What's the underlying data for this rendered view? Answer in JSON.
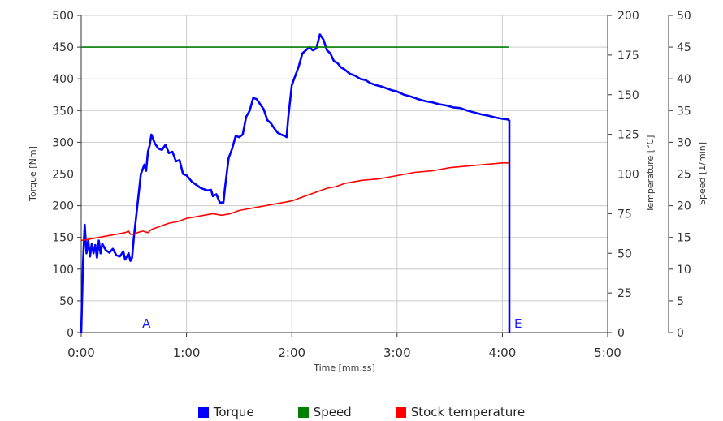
{
  "colors": {
    "torque": "#0000ff",
    "speed": "#007f00",
    "temperature": "#ff0000",
    "grid": "#cccccc",
    "marker": "#1a1aff"
  },
  "chart_data": {
    "type": "line",
    "title": "",
    "xlabel": "Time [mm:ss]",
    "xlim": [
      "0:00",
      "5:00"
    ],
    "x_ticks": [
      "0:00",
      "1:00",
      "2:00",
      "3:00",
      "4:00",
      "5:00"
    ],
    "grid": true,
    "legend_position": "bottom-center",
    "axes": {
      "torque": {
        "label": "Torque [Nm]",
        "range": [
          0,
          500
        ],
        "ticks": [
          0,
          50,
          100,
          150,
          200,
          250,
          300,
          350,
          400,
          450,
          500
        ],
        "side": "left"
      },
      "temperature": {
        "label": "Temperature [°C]",
        "range": [
          0,
          200
        ],
        "ticks": [
          0,
          25,
          50,
          75,
          100,
          125,
          150,
          175,
          200
        ],
        "side": "right"
      },
      "speed": {
        "label": "Speed [1/min]",
        "range": [
          0,
          50
        ],
        "ticks": [
          0,
          5,
          10,
          15,
          20,
          25,
          30,
          35,
          40,
          45,
          50
        ],
        "side": "right-outer"
      }
    },
    "series": [
      {
        "name": "Torque",
        "axis": "torque",
        "color": "#0000ff",
        "points": [
          [
            "0:00",
            0
          ],
          [
            "0:01",
            110
          ],
          [
            "0:02",
            170
          ],
          [
            "0:03",
            125
          ],
          [
            "0:04",
            145
          ],
          [
            "0:05",
            120
          ],
          [
            "0:06",
            140
          ],
          [
            "0:07",
            125
          ],
          [
            "0:08",
            138
          ],
          [
            "0:09",
            118
          ],
          [
            "0:10",
            145
          ],
          [
            "0:11",
            125
          ],
          [
            "0:12",
            140
          ],
          [
            "0:14",
            130
          ],
          [
            "0:16",
            126
          ],
          [
            "0:18",
            132
          ],
          [
            "0:20",
            122
          ],
          [
            "0:22",
            120
          ],
          [
            "0:24",
            128
          ],
          [
            "0:25",
            115
          ],
          [
            "0:27",
            125
          ],
          [
            "0:28",
            113
          ],
          [
            "0:29",
            118
          ],
          [
            "0:30",
            150
          ],
          [
            "0:32",
            200
          ],
          [
            "0:34",
            250
          ],
          [
            "0:36",
            265
          ],
          [
            "0:37",
            255
          ],
          [
            "0:38",
            285
          ],
          [
            "0:39",
            295
          ],
          [
            "0:40",
            312
          ],
          [
            "0:42",
            298
          ],
          [
            "0:44",
            290
          ],
          [
            "0:46",
            288
          ],
          [
            "0:48",
            296
          ],
          [
            "0:50",
            283
          ],
          [
            "0:52",
            285
          ],
          [
            "0:54",
            270
          ],
          [
            "0:56",
            272
          ],
          [
            "0:58",
            250
          ],
          [
            "1:00",
            248
          ],
          [
            "1:03",
            238
          ],
          [
            "1:06",
            232
          ],
          [
            "1:08",
            228
          ],
          [
            "1:10",
            226
          ],
          [
            "1:12",
            224
          ],
          [
            "1:14",
            225
          ],
          [
            "1:15",
            215
          ],
          [
            "1:17",
            218
          ],
          [
            "1:19",
            205
          ],
          [
            "1:21",
            205
          ],
          [
            "1:22",
            230
          ],
          [
            "1:24",
            275
          ],
          [
            "1:26",
            290
          ],
          [
            "1:28",
            310
          ],
          [
            "1:30",
            308
          ],
          [
            "1:32",
            312
          ],
          [
            "1:34",
            340
          ],
          [
            "1:36",
            350
          ],
          [
            "1:38",
            370
          ],
          [
            "1:40",
            368
          ],
          [
            "1:42",
            360
          ],
          [
            "1:44",
            352
          ],
          [
            "1:46",
            335
          ],
          [
            "1:48",
            330
          ],
          [
            "1:50",
            322
          ],
          [
            "1:52",
            315
          ],
          [
            "1:54",
            312
          ],
          [
            "1:56",
            310
          ],
          [
            "1:57",
            308
          ],
          [
            "1:58",
            340
          ],
          [
            "2:00",
            390
          ],
          [
            "2:02",
            405
          ],
          [
            "2:04",
            420
          ],
          [
            "2:06",
            440
          ],
          [
            "2:08",
            445
          ],
          [
            "2:10",
            450
          ],
          [
            "2:12",
            445
          ],
          [
            "2:14",
            448
          ],
          [
            "2:16",
            470
          ],
          [
            "2:18",
            462
          ],
          [
            "2:20",
            445
          ],
          [
            "2:22",
            440
          ],
          [
            "2:24",
            428
          ],
          [
            "2:26",
            425
          ],
          [
            "2:28",
            418
          ],
          [
            "2:30",
            415
          ],
          [
            "2:33",
            408
          ],
          [
            "2:36",
            405
          ],
          [
            "2:39",
            400
          ],
          [
            "2:42",
            398
          ],
          [
            "2:45",
            393
          ],
          [
            "2:48",
            390
          ],
          [
            "2:51",
            388
          ],
          [
            "2:54",
            385
          ],
          [
            "2:57",
            382
          ],
          [
            "3:00",
            380
          ],
          [
            "3:04",
            375
          ],
          [
            "3:08",
            372
          ],
          [
            "3:12",
            368
          ],
          [
            "3:16",
            365
          ],
          [
            "3:20",
            363
          ],
          [
            "3:24",
            360
          ],
          [
            "3:28",
            358
          ],
          [
            "3:32",
            355
          ],
          [
            "3:36",
            354
          ],
          [
            "3:40",
            350
          ],
          [
            "3:44",
            347
          ],
          [
            "3:48",
            344
          ],
          [
            "3:52",
            342
          ],
          [
            "3:56",
            339
          ],
          [
            "4:00",
            337
          ],
          [
            "4:03",
            336
          ],
          [
            "4:04",
            334
          ],
          [
            "4:04",
            0
          ]
        ]
      },
      {
        "name": "Speed",
        "axis": "speed",
        "color": "#007f00",
        "points": [
          [
            "0:00",
            45
          ],
          [
            "0:30",
            45
          ],
          [
            "1:00",
            45
          ],
          [
            "1:30",
            45
          ],
          [
            "2:00",
            45
          ],
          [
            "2:30",
            45
          ],
          [
            "3:00",
            45
          ],
          [
            "3:30",
            45
          ],
          [
            "4:00",
            45
          ],
          [
            "4:04",
            45
          ]
        ]
      },
      {
        "name": "Stock temperature",
        "axis": "temperature",
        "color": "#ff0000",
        "points": [
          [
            "0:00",
            58
          ],
          [
            "0:05",
            59
          ],
          [
            "0:10",
            60
          ],
          [
            "0:15",
            61
          ],
          [
            "0:20",
            62
          ],
          [
            "0:25",
            63
          ],
          [
            "0:27",
            64
          ],
          [
            "0:28",
            62
          ],
          [
            "0:30",
            62
          ],
          [
            "0:32",
            63
          ],
          [
            "0:35",
            64
          ],
          [
            "0:38",
            63
          ],
          [
            "0:40",
            65
          ],
          [
            "0:45",
            67
          ],
          [
            "0:50",
            69
          ],
          [
            "0:55",
            70
          ],
          [
            "1:00",
            72
          ],
          [
            "1:05",
            73
          ],
          [
            "1:10",
            74
          ],
          [
            "1:15",
            75
          ],
          [
            "1:20",
            74
          ],
          [
            "1:25",
            75
          ],
          [
            "1:30",
            77
          ],
          [
            "1:35",
            78
          ],
          [
            "1:40",
            79
          ],
          [
            "1:45",
            80
          ],
          [
            "1:50",
            81
          ],
          [
            "1:55",
            82
          ],
          [
            "2:00",
            83
          ],
          [
            "2:05",
            85
          ],
          [
            "2:10",
            87
          ],
          [
            "2:15",
            89
          ],
          [
            "2:20",
            91
          ],
          [
            "2:25",
            92
          ],
          [
            "2:30",
            94
          ],
          [
            "2:40",
            96
          ],
          [
            "2:50",
            97
          ],
          [
            "3:00",
            99
          ],
          [
            "3:10",
            101
          ],
          [
            "3:20",
            102
          ],
          [
            "3:30",
            104
          ],
          [
            "3:40",
            105
          ],
          [
            "3:50",
            106
          ],
          [
            "4:00",
            107
          ],
          [
            "4:04",
            107
          ]
        ]
      }
    ],
    "markers": [
      {
        "label": "A",
        "x": "0:32"
      },
      {
        "label": "E",
        "x": "4:04"
      }
    ]
  }
}
